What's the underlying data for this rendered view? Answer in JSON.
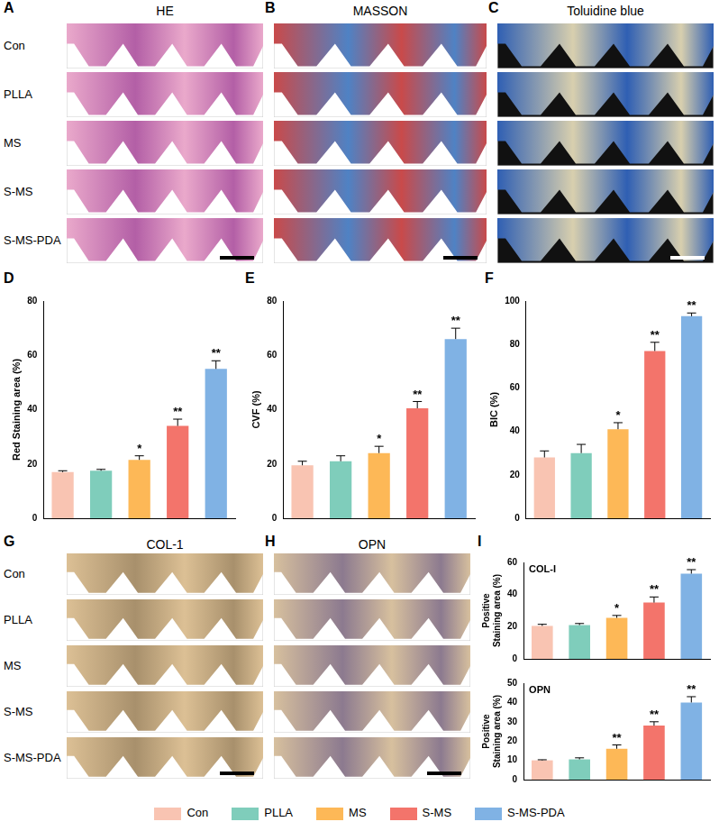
{
  "image_groups": [
    {
      "rows": [
        "Con",
        "PLLA",
        "MS",
        "S-MS",
        "S-MS-PDA"
      ],
      "panels": [
        {
          "letter": "A",
          "title": "HE"
        },
        {
          "letter": "B",
          "title": "MASSON"
        },
        {
          "letter": "C",
          "title": "Toluidine blue"
        }
      ]
    },
    {
      "rows": [
        "Con",
        "PLLA",
        "MS",
        "S-MS",
        "S-MS-PDA"
      ],
      "panels": [
        {
          "letter": "G",
          "title": "COL-1"
        },
        {
          "letter": "H",
          "title": "OPN"
        }
      ]
    }
  ],
  "chart_data": [
    {
      "letter": "D",
      "type": "bar",
      "y_label": "Red Staining area (%)",
      "categories": [
        "Con",
        "PLLA",
        "MS",
        "S-MS",
        "S-MS-PDA"
      ],
      "values": [
        17,
        17.5,
        21.5,
        34,
        55
      ],
      "errors": [
        0.5,
        0.5,
        1.5,
        2.5,
        3
      ],
      "significance": [
        null,
        null,
        "*",
        "**",
        "**"
      ],
      "colors": [
        "#f9c4b2",
        "#7fcdbb",
        "#fdb857",
        "#f3746b",
        "#80b2e4"
      ],
      "ylim": [
        0,
        80
      ],
      "yticks": [
        0,
        20,
        40,
        60,
        80
      ],
      "tick_labels": "y",
      "grid": false
    },
    {
      "letter": "E",
      "type": "bar",
      "y_label": "CVF (%)",
      "categories": [
        "Con",
        "PLLA",
        "MS",
        "S-MS",
        "S-MS-PDA"
      ],
      "values": [
        19.5,
        21,
        24,
        40.5,
        66
      ],
      "errors": [
        1.5,
        2,
        2.5,
        2.5,
        4
      ],
      "significance": [
        null,
        null,
        "*",
        "**",
        "**"
      ],
      "colors": [
        "#f9c4b2",
        "#7fcdbb",
        "#fdb857",
        "#f3746b",
        "#80b2e4"
      ],
      "ylim": [
        0,
        80
      ],
      "yticks": [
        0,
        20,
        40,
        60,
        80
      ],
      "tick_labels": "y",
      "grid": false
    },
    {
      "letter": "F",
      "type": "bar",
      "y_label": "BIC (%)",
      "categories": [
        "Con",
        "PLLA",
        "MS",
        "S-MS",
        "S-MS-PDA"
      ],
      "values": [
        28,
        30,
        41,
        77,
        93
      ],
      "errors": [
        3,
        4,
        3,
        4,
        1.5
      ],
      "significance": [
        null,
        null,
        "*",
        "**",
        "**"
      ],
      "colors": [
        "#f9c4b2",
        "#7fcdbb",
        "#fdb857",
        "#f3746b",
        "#80b2e4"
      ],
      "ylim": [
        0,
        100
      ],
      "yticks": [
        0,
        20,
        40,
        60,
        80,
        100
      ],
      "tick_labels": "y",
      "grid": false
    },
    {
      "letter": "I",
      "type": "bar",
      "y_label": "Positive Staining area (%)",
      "inset_label": "COL-I",
      "categories": [
        "Con",
        "PLLA",
        "MS",
        "S-MS",
        "S-MS-PDA"
      ],
      "values": [
        20.5,
        21,
        25.5,
        35,
        53
      ],
      "errors": [
        1,
        1,
        1.5,
        3.5,
        2.5
      ],
      "significance": [
        null,
        null,
        "*",
        "**",
        "**"
      ],
      "colors": [
        "#f9c4b2",
        "#7fcdbb",
        "#fdb857",
        "#f3746b",
        "#80b2e4"
      ],
      "ylim": [
        0,
        60
      ],
      "yticks": [
        0,
        20,
        40,
        60
      ],
      "tick_labels": "y",
      "grid": false
    },
    {
      "type": "bar",
      "y_label": "Positive Staining area (%)",
      "inset_label": "OPN",
      "categories": [
        "Con",
        "PLLA",
        "MS",
        "S-MS",
        "S-MS-PDA"
      ],
      "values": [
        10,
        10.5,
        16,
        28,
        40
      ],
      "errors": [
        0.3,
        0.8,
        2,
        2,
        3
      ],
      "significance": [
        null,
        null,
        "**",
        "**",
        "**"
      ],
      "colors": [
        "#f9c4b2",
        "#7fcdbb",
        "#fdb857",
        "#f3746b",
        "#80b2e4"
      ],
      "ylim": [
        0,
        50
      ],
      "yticks": [
        0,
        10,
        20,
        30,
        40,
        50
      ],
      "tick_labels": "y",
      "grid": false
    }
  ],
  "figure_legend": {
    "labels": [
      "Con",
      "PLLA",
      "MS",
      "S-MS",
      "S-MS-PDA"
    ],
    "colors": [
      "#f9c4b2",
      "#7fcdbb",
      "#fdb857",
      "#f3746b",
      "#80b2e4"
    ]
  }
}
